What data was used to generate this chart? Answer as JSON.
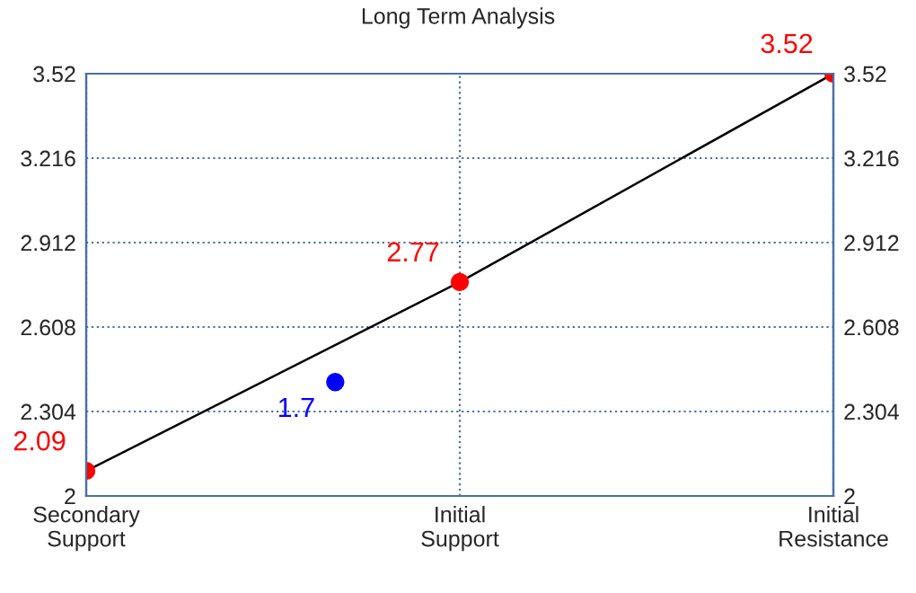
{
  "chart_data": {
    "type": "line",
    "title": "Long Term Analysis",
    "categories": [
      "Secondary\nSupport",
      null,
      null,
      "Initial\nSupport",
      null,
      null,
      "Initial\nResistance"
    ],
    "ylim": [
      2,
      3.52
    ],
    "yticks": [
      2,
      2.304,
      2.608,
      2.912,
      3.216,
      3.52
    ],
    "y2lim": [
      2,
      3.52
    ],
    "y2ticks": [
      2,
      2.304,
      2.608,
      2.912,
      3.216,
      3.52
    ],
    "grid": true,
    "marker": "circle",
    "series": [
      {
        "color": "#000000",
        "colors": [
          "#ff0000",
          null,
          null,
          "#ff0000",
          null,
          null,
          "#ff0000"
        ],
        "values": [
          2.09,
          null,
          null,
          2.77,
          null,
          null,
          3.52
        ],
        "value_labels": [
          "2.09",
          null,
          null,
          "2.77",
          null,
          null,
          "3.52"
        ]
      },
      {
        "type": "scatter",
        "color": "#0000ff",
        "values": [
          null,
          null,
          2.41,
          null,
          null,
          null,
          null
        ]
      }
    ],
    "annotations": [
      "1.7"
    ]
  }
}
